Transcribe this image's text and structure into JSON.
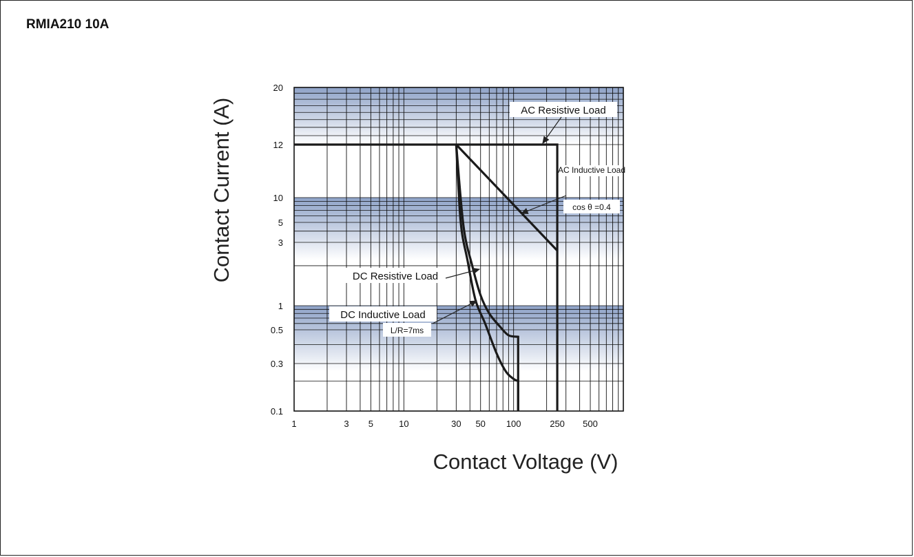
{
  "chart_data": {
    "type": "line",
    "title": "RMIA210 10A",
    "xlabel": "Contact Voltage (V)",
    "ylabel": "Contact Current (A)",
    "x_scale": "log",
    "y_scale": "log",
    "xlim": [
      1,
      1000
    ],
    "ylim": [
      0.1,
      20
    ],
    "x_tick_labels": [
      "1",
      "3",
      "5",
      "10",
      "30",
      "50",
      "100",
      "250",
      "500"
    ],
    "y_tick_labels": [
      "20",
      "12",
      "10",
      "5",
      "3",
      "1",
      "0.5",
      "0.3",
      "0.1"
    ],
    "series": [
      {
        "name": "AC Resistive Load",
        "x": [
          1,
          250,
          250
        ],
        "y": [
          12,
          12,
          0.1
        ]
      },
      {
        "name": "AC Inductive Load",
        "annotation": "cos θ =0.4",
        "x": [
          30,
          250
        ],
        "y": [
          12,
          2.6
        ]
      },
      {
        "name": "DC Resistive Load",
        "x": [
          30,
          35,
          42,
          50,
          60,
          75,
          90,
          110,
          110
        ],
        "y": [
          12,
          4.5,
          2.0,
          1.2,
          0.8,
          0.55,
          0.46,
          0.45,
          0.1
        ]
      },
      {
        "name": "DC Inductive Load",
        "annotation": "L/R=7ms",
        "x": [
          30,
          33,
          38,
          45,
          55,
          70,
          85,
          100,
          110,
          110
        ],
        "y": [
          12,
          5.0,
          2.2,
          1.1,
          0.6,
          0.35,
          0.25,
          0.21,
          0.2,
          0.1
        ]
      }
    ],
    "legend_position": "annotations-on-plot",
    "grid": true
  }
}
